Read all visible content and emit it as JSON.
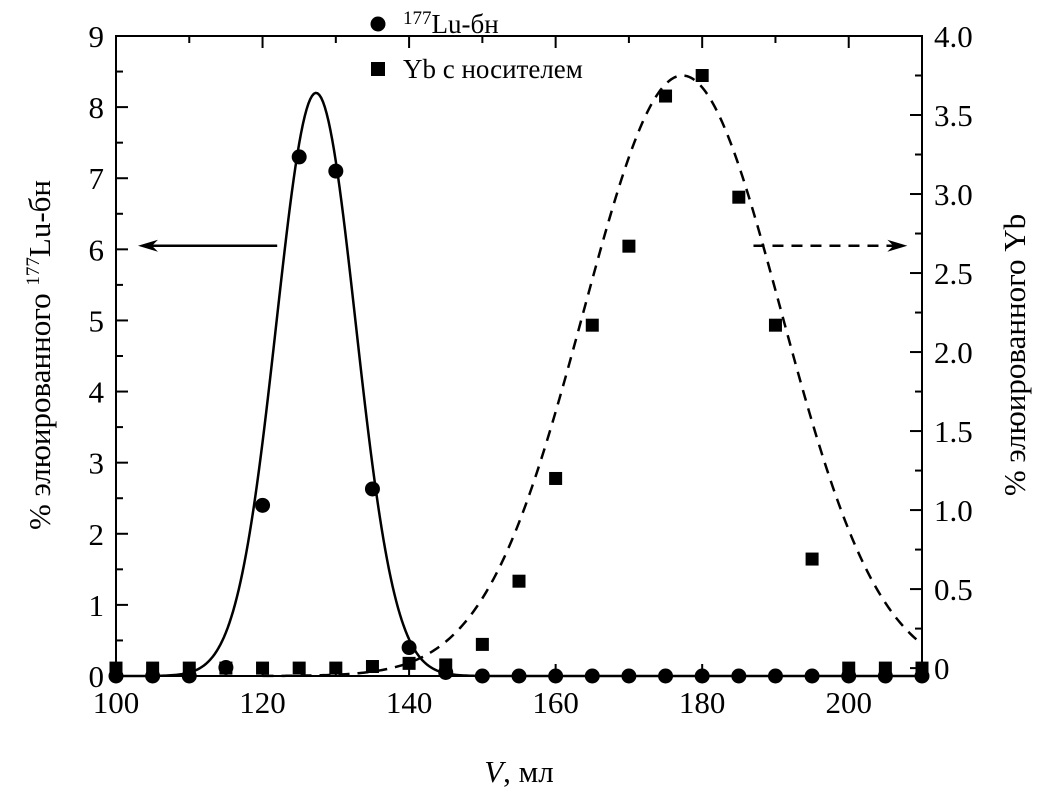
{
  "chart_data": {
    "type": "scatter",
    "x_axis": {
      "label_prefix": "V",
      "label_suffix": ", мл",
      "range": [
        100,
        210
      ],
      "ticks": [
        100,
        120,
        140,
        160,
        180,
        200
      ],
      "tick_labels": [
        "100",
        "120",
        "140",
        "160",
        "180",
        "200"
      ],
      "minor_step": 10
    },
    "y_left": {
      "label_prefix": "% элюированного ",
      "label_sup": "177",
      "label_suffix": "Lu-бн",
      "range": [
        0,
        9
      ],
      "ticks": [
        0,
        1,
        2,
        3,
        4,
        5,
        6,
        7,
        8,
        9
      ],
      "tick_labels": [
        "0",
        "1",
        "2",
        "3",
        "4",
        "5",
        "6",
        "7",
        "8",
        "9"
      ]
    },
    "y_right": {
      "label": "% элюированного Yb",
      "range": [
        -0.05,
        4.0
      ],
      "ticks": [
        0,
        0.5,
        1.0,
        1.5,
        2.0,
        2.5,
        3.0,
        3.5,
        4.0
      ],
      "tick_labels": [
        "0",
        "0.5",
        "1.0",
        "1.5",
        "2.0",
        "2.5",
        "3.0",
        "3.5",
        "4.0"
      ]
    },
    "legend": {
      "position": "top-center",
      "items": [
        {
          "marker": "circle",
          "sup": "177",
          "text": "Lu-бн"
        },
        {
          "marker": "square",
          "text": "Yb с носителем"
        }
      ]
    },
    "series": [
      {
        "name": "177Lu-бн",
        "marker": "circle",
        "axis": "left",
        "points": [
          [
            100,
            0
          ],
          [
            105,
            0
          ],
          [
            110,
            0
          ],
          [
            115,
            0.12
          ],
          [
            120,
            2.4
          ],
          [
            125,
            7.3
          ],
          [
            130,
            7.1
          ],
          [
            135,
            2.63
          ],
          [
            140,
            0.4
          ],
          [
            145,
            0.05
          ],
          [
            150,
            0
          ],
          [
            155,
            0
          ],
          [
            160,
            0
          ],
          [
            165,
            0
          ],
          [
            170,
            0
          ],
          [
            175,
            0
          ],
          [
            180,
            0
          ],
          [
            185,
            0
          ],
          [
            190,
            0
          ],
          [
            195,
            0
          ],
          [
            200,
            0
          ],
          [
            205,
            0
          ],
          [
            210,
            0
          ]
        ],
        "fit": {
          "style": "solid",
          "amplitude": 8.2,
          "center": 127.3,
          "sigma": 5.4,
          "from": 100,
          "to": 210
        }
      },
      {
        "name": "Yb с носителем",
        "marker": "square",
        "axis": "right",
        "points": [
          [
            100,
            0
          ],
          [
            105,
            0
          ],
          [
            110,
            0
          ],
          [
            115,
            0
          ],
          [
            120,
            0
          ],
          [
            125,
            0
          ],
          [
            130,
            0
          ],
          [
            135,
            0.01
          ],
          [
            140,
            0.03
          ],
          [
            145,
            0.02
          ],
          [
            150,
            0.15
          ],
          [
            155,
            0.55
          ],
          [
            160,
            1.2
          ],
          [
            165,
            2.17
          ],
          [
            170,
            2.67
          ],
          [
            175,
            3.62
          ],
          [
            180,
            3.75
          ],
          [
            185,
            2.98
          ],
          [
            190,
            2.17
          ],
          [
            195,
            0.69
          ],
          [
            200,
            0
          ],
          [
            205,
            0
          ],
          [
            210,
            0
          ]
        ],
        "fit": {
          "style": "dashed",
          "amplitude": 3.8,
          "offset": -0.05,
          "center": 177.3,
          "sigma": 13.5,
          "from": 120,
          "to": 210
        }
      }
    ],
    "annotations": [
      {
        "type": "arrow",
        "direction": "left",
        "style": "solid",
        "from_x": 122,
        "to_x": 103,
        "y_left": 6.05
      },
      {
        "type": "arrow",
        "direction": "right",
        "style": "dashed",
        "from_x": 187,
        "to_x": 208,
        "y_left": 6.05
      }
    ]
  }
}
